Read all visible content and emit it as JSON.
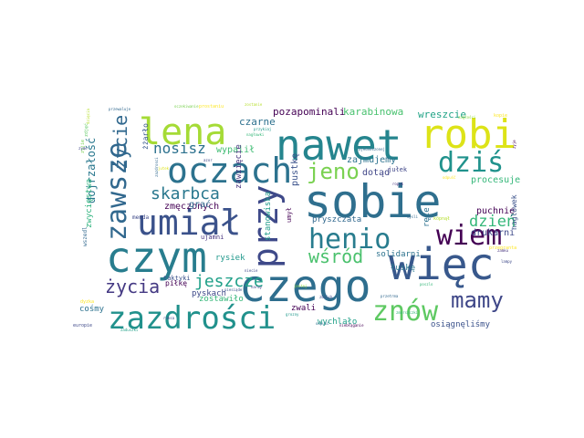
{
  "wordcloud": {
    "words": [
      {
        "text": "sobie",
        "color": "#2f6f8e"
      },
      {
        "text": "czego",
        "color": "#2e6e8e"
      },
      {
        "text": "więc",
        "color": "#38588c"
      },
      {
        "text": "czym",
        "color": "#287d8e"
      },
      {
        "text": "nawet",
        "color": "#25858e"
      },
      {
        "text": "robi",
        "color": "#dde318"
      },
      {
        "text": "umiał",
        "color": "#3b528b"
      },
      {
        "text": "zazdrości",
        "color": "#21918c"
      },
      {
        "text": "oczach",
        "color": "#2c728e"
      },
      {
        "text": "lena",
        "color": "#a5db36"
      },
      {
        "text": "zawsze",
        "color": "#31688e"
      },
      {
        "text": "przy",
        "color": "#3e4989"
      },
      {
        "text": "henio",
        "color": "#287c8e"
      },
      {
        "text": "dziś",
        "color": "#20928c"
      },
      {
        "text": "wiem",
        "color": "#440154"
      },
      {
        "text": "znów",
        "color": "#5ec962"
      },
      {
        "text": "mamy",
        "color": "#3f4788"
      },
      {
        "text": "życie",
        "color": "#31688e"
      },
      {
        "text": "jeno",
        "color": "#7ad151"
      },
      {
        "text": "skarbca",
        "color": "#2a788e"
      },
      {
        "text": "życia",
        "color": "#443983"
      },
      {
        "text": "wśród",
        "color": "#4ac16d"
      },
      {
        "text": "jeszcze",
        "color": "#1fa088"
      },
      {
        "text": "nosisz",
        "color": "#2c718e"
      },
      {
        "text": "dzień",
        "color": "#35b779"
      },
      {
        "text": "pozapominali",
        "color": "#440154"
      },
      {
        "text": "karabinowa",
        "color": "#48c16e"
      },
      {
        "text": "wreszcie",
        "color": "#20a386"
      },
      {
        "text": "czarne",
        "color": "#2d708e"
      },
      {
        "text": "wypalił",
        "color": "#3fbc73"
      },
      {
        "text": "zajmujemy",
        "color": "#2c728e"
      },
      {
        "text": "dotąd",
        "color": "#404688"
      },
      {
        "text": "procesuje",
        "color": "#35b779"
      },
      {
        "text": "puchnie",
        "color": "#440154"
      },
      {
        "text": "drukarni",
        "color": "#3e4989"
      },
      {
        "text": "zmęczonych",
        "color": "#440154"
      },
      {
        "text": "grać",
        "color": "#31688e"
      },
      {
        "text": "pustkę",
        "color": "#3b528b"
      },
      {
        "text": "zawzięcie",
        "color": "#46337e"
      },
      {
        "text": "dojrzałość",
        "color": "#2a788e"
      },
      {
        "text": "zwycięstwa",
        "color": "#2db27d"
      },
      {
        "text": "żżarło",
        "color": "#38588c"
      },
      {
        "text": "stanowiska",
        "color": "#1e9b8a"
      },
      {
        "text": "pryszczata",
        "color": "#31688e"
      },
      {
        "text": "solidarni",
        "color": "#2c728e"
      },
      {
        "text": "łuskę",
        "color": "#2a788e"
      },
      {
        "text": "ręce",
        "color": "#2c728e"
      },
      {
        "text": "naglówek",
        "color": "#3b528b"
      },
      {
        "text": "rysiek",
        "color": "#1f988b"
      },
      {
        "text": "zostawiło",
        "color": "#35b779"
      },
      {
        "text": "pyskach",
        "color": "#3e4989"
      },
      {
        "text": "zwali",
        "color": "#440154"
      },
      {
        "text": "wychlało",
        "color": "#1fa088"
      },
      {
        "text": "osiągnęliśmy",
        "color": "#3b528b"
      },
      {
        "text": "cośmy",
        "color": "#2c728e"
      },
      {
        "text": "piłkę",
        "color": "#440154"
      },
      {
        "text": "taktyki",
        "color": "#3b528b"
      },
      {
        "text": "ujamni",
        "color": "#46337e"
      },
      {
        "text": "umył",
        "color": "#440154"
      },
      {
        "text": "jułek",
        "color": "#404688"
      },
      {
        "text": "menda",
        "color": "#3e4989"
      },
      {
        "text": "wszedl",
        "color": "#31688e"
      },
      {
        "text": "europie",
        "color": "#3e4989"
      },
      {
        "text": "zdjęć",
        "color": "#5ec962"
      },
      {
        "text": "przewaluje",
        "color": "#31688e"
      },
      {
        "text": "oczekiwanie",
        "color": "#7ad151"
      },
      {
        "text": "prostaniu",
        "color": "#fde725"
      },
      {
        "text": "zostanie",
        "color": "#b5de2b"
      },
      {
        "text": "nagłowki",
        "color": "#35b779"
      },
      {
        "text": "przykiaj",
        "color": "#1f988b"
      },
      {
        "text": "zjednoczonej",
        "color": "#31688e"
      },
      {
        "text": "zagłości",
        "color": "#8fd744"
      },
      {
        "text": "kopie",
        "color": "#fde725"
      },
      {
        "text": "zyje",
        "color": "#440154"
      },
      {
        "text": "azor",
        "color": "#3e4989"
      },
      {
        "text": "jutek",
        "color": "#dde318"
      },
      {
        "text": "ropsk",
        "color": "#46337e"
      },
      {
        "text": "odpuść",
        "color": "#fde725"
      },
      {
        "text": "mysli",
        "color": "#31688e"
      },
      {
        "text": "köpnął",
        "color": "#b5de2b"
      },
      {
        "text": "przegranta",
        "color": "#fde725"
      },
      {
        "text": "zamku",
        "color": "#46337e"
      },
      {
        "text": "lampy",
        "color": "#3e4989"
      },
      {
        "text": "niecie",
        "color": "#3e4989"
      },
      {
        "text": "narwy",
        "color": "#404688"
      },
      {
        "text": "jestej",
        "color": "#8fd744"
      },
      {
        "text": "piesiąde",
        "color": "#3b528b"
      },
      {
        "text": "zbilch",
        "color": "#3e4989"
      },
      {
        "text": "grozny",
        "color": "#1f988b"
      },
      {
        "text": "przetrma",
        "color": "#31688e"
      },
      {
        "text": "zmarszczki",
        "color": "#35b779"
      },
      {
        "text": "odpuść",
        "color": "#2c728e"
      },
      {
        "text": "niebłąganie",
        "color": "#440154"
      },
      {
        "text": "dzięcia",
        "color": "#b5de2b"
      },
      {
        "text": "zyjie",
        "color": "#7ad151"
      },
      {
        "text": "zyme",
        "color": "#404688"
      },
      {
        "text": "zazdrosci",
        "color": "#31688e"
      },
      {
        "text": "dyzka",
        "color": "#fde725"
      },
      {
        "text": "zaduszki",
        "color": "#1fa088"
      },
      {
        "text": "ruksa",
        "color": "#3e4989"
      },
      {
        "text": "poszlo",
        "color": "#35b779"
      }
    ]
  }
}
